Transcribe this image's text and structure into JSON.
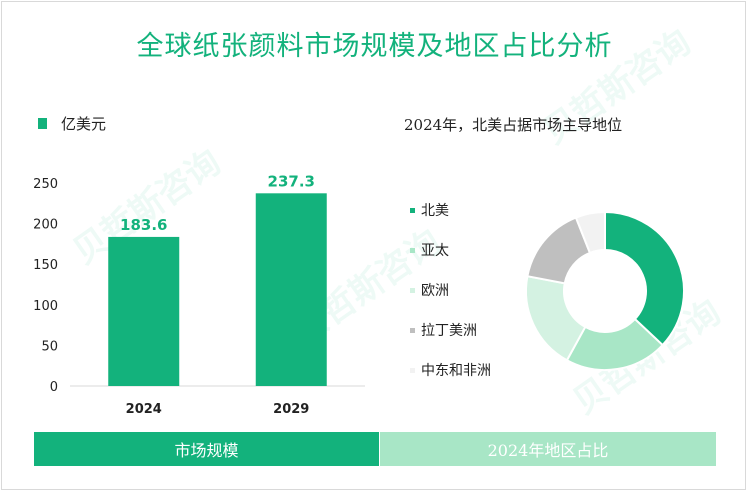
{
  "title": "全球纸张颜料市场规模及地区占比分析",
  "watermark_text": "贝哲斯咨询",
  "colors": {
    "accent": "#13b27c",
    "light_green": "#a8e6c6",
    "pale_green": "#d4f2e2",
    "gray": "#bfbfbf",
    "very_light": "#f2f2f2"
  },
  "chart_data": [
    {
      "type": "bar",
      "legend": "亿美元",
      "categories": [
        "2024",
        "2029"
      ],
      "values": [
        183.6,
        237.3
      ],
      "value_labels": [
        "183.6",
        "237.3"
      ],
      "ylim": [
        0,
        250
      ],
      "yticks": [
        "0",
        "50",
        "100",
        "150",
        "200",
        "250"
      ],
      "grid": false,
      "legend_position": "top-left"
    },
    {
      "type": "pie",
      "subtitle": "2024年，北美占据市场主导地位",
      "labels": [
        "北美",
        "亚太",
        "欧洲",
        "拉丁美洲",
        "中东和非洲"
      ],
      "values": [
        37,
        21,
        20,
        16,
        6
      ],
      "colors": [
        "#13b27c",
        "#a8e6c6",
        "#d4f2e2",
        "#bfbfbf",
        "#f2f2f2"
      ],
      "legend_position": "left"
    }
  ],
  "bottom": {
    "left_label": "市场规模",
    "right_label": "2024年地区占比"
  }
}
